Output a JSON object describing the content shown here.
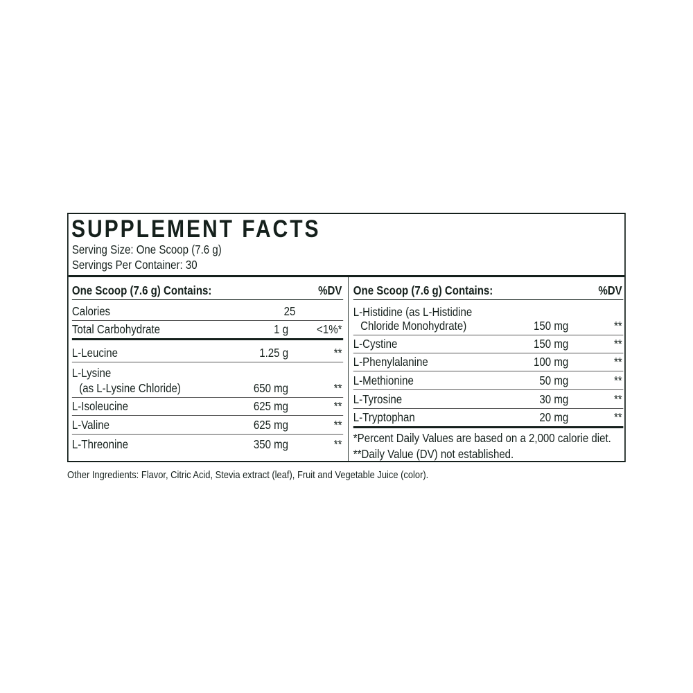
{
  "title": "SUPPLEMENT FACTS",
  "serving_size": "Serving Size: One Scoop (7.6 g)",
  "servings_per_container": "Servings Per Container: 30",
  "left": {
    "header": {
      "label": "One Scoop (7.6 g) Contains:",
      "dv": "%DV"
    },
    "rows": [
      {
        "name": "Calories",
        "amount": "25",
        "dv": ""
      },
      {
        "name": "Total Carbohydrate",
        "amount": "1 g",
        "dv": "<1%*"
      },
      {
        "name": "L-Leucine",
        "amount": "1.25 g",
        "dv": "**"
      },
      {
        "name": "L-Lysine",
        "name2": "(as L-Lysine Chloride)",
        "amount": "650 mg",
        "dv": "**"
      },
      {
        "name": "L-Isoleucine",
        "amount": "625 mg",
        "dv": "**"
      },
      {
        "name": "L-Valine",
        "amount": "625 mg",
        "dv": "**"
      },
      {
        "name": "L-Threonine",
        "amount": "350 mg",
        "dv": "**"
      }
    ]
  },
  "right": {
    "header": {
      "label": "One Scoop (7.6 g) Contains:",
      "dv": "%DV"
    },
    "rows": [
      {
        "name": "L-Histidine (as L-Histidine",
        "name2": "Chloride Monohydrate)",
        "amount": "150 mg",
        "dv": "**"
      },
      {
        "name": "L-Cystine",
        "amount": "150 mg",
        "dv": "**"
      },
      {
        "name": "L-Phenylalanine",
        "amount": "100 mg",
        "dv": "**"
      },
      {
        "name": "L-Methionine",
        "amount": "50 mg",
        "dv": "**"
      },
      {
        "name": "L-Tyrosine",
        "amount": "30 mg",
        "dv": "**"
      },
      {
        "name": "L-Tryptophan",
        "amount": "20 mg",
        "dv": "**"
      }
    ],
    "footnotes": [
      "*Percent Daily Values are based on a 2,000 calorie diet.",
      "**Daily Value (DV) not established."
    ]
  },
  "other_ingredients": "Other Ingredients:  Flavor, Citric Acid, Stevia extract (leaf), Fruit and Vegetable Juice (color).",
  "colors": {
    "text": "#15201c",
    "background": "#ffffff"
  }
}
